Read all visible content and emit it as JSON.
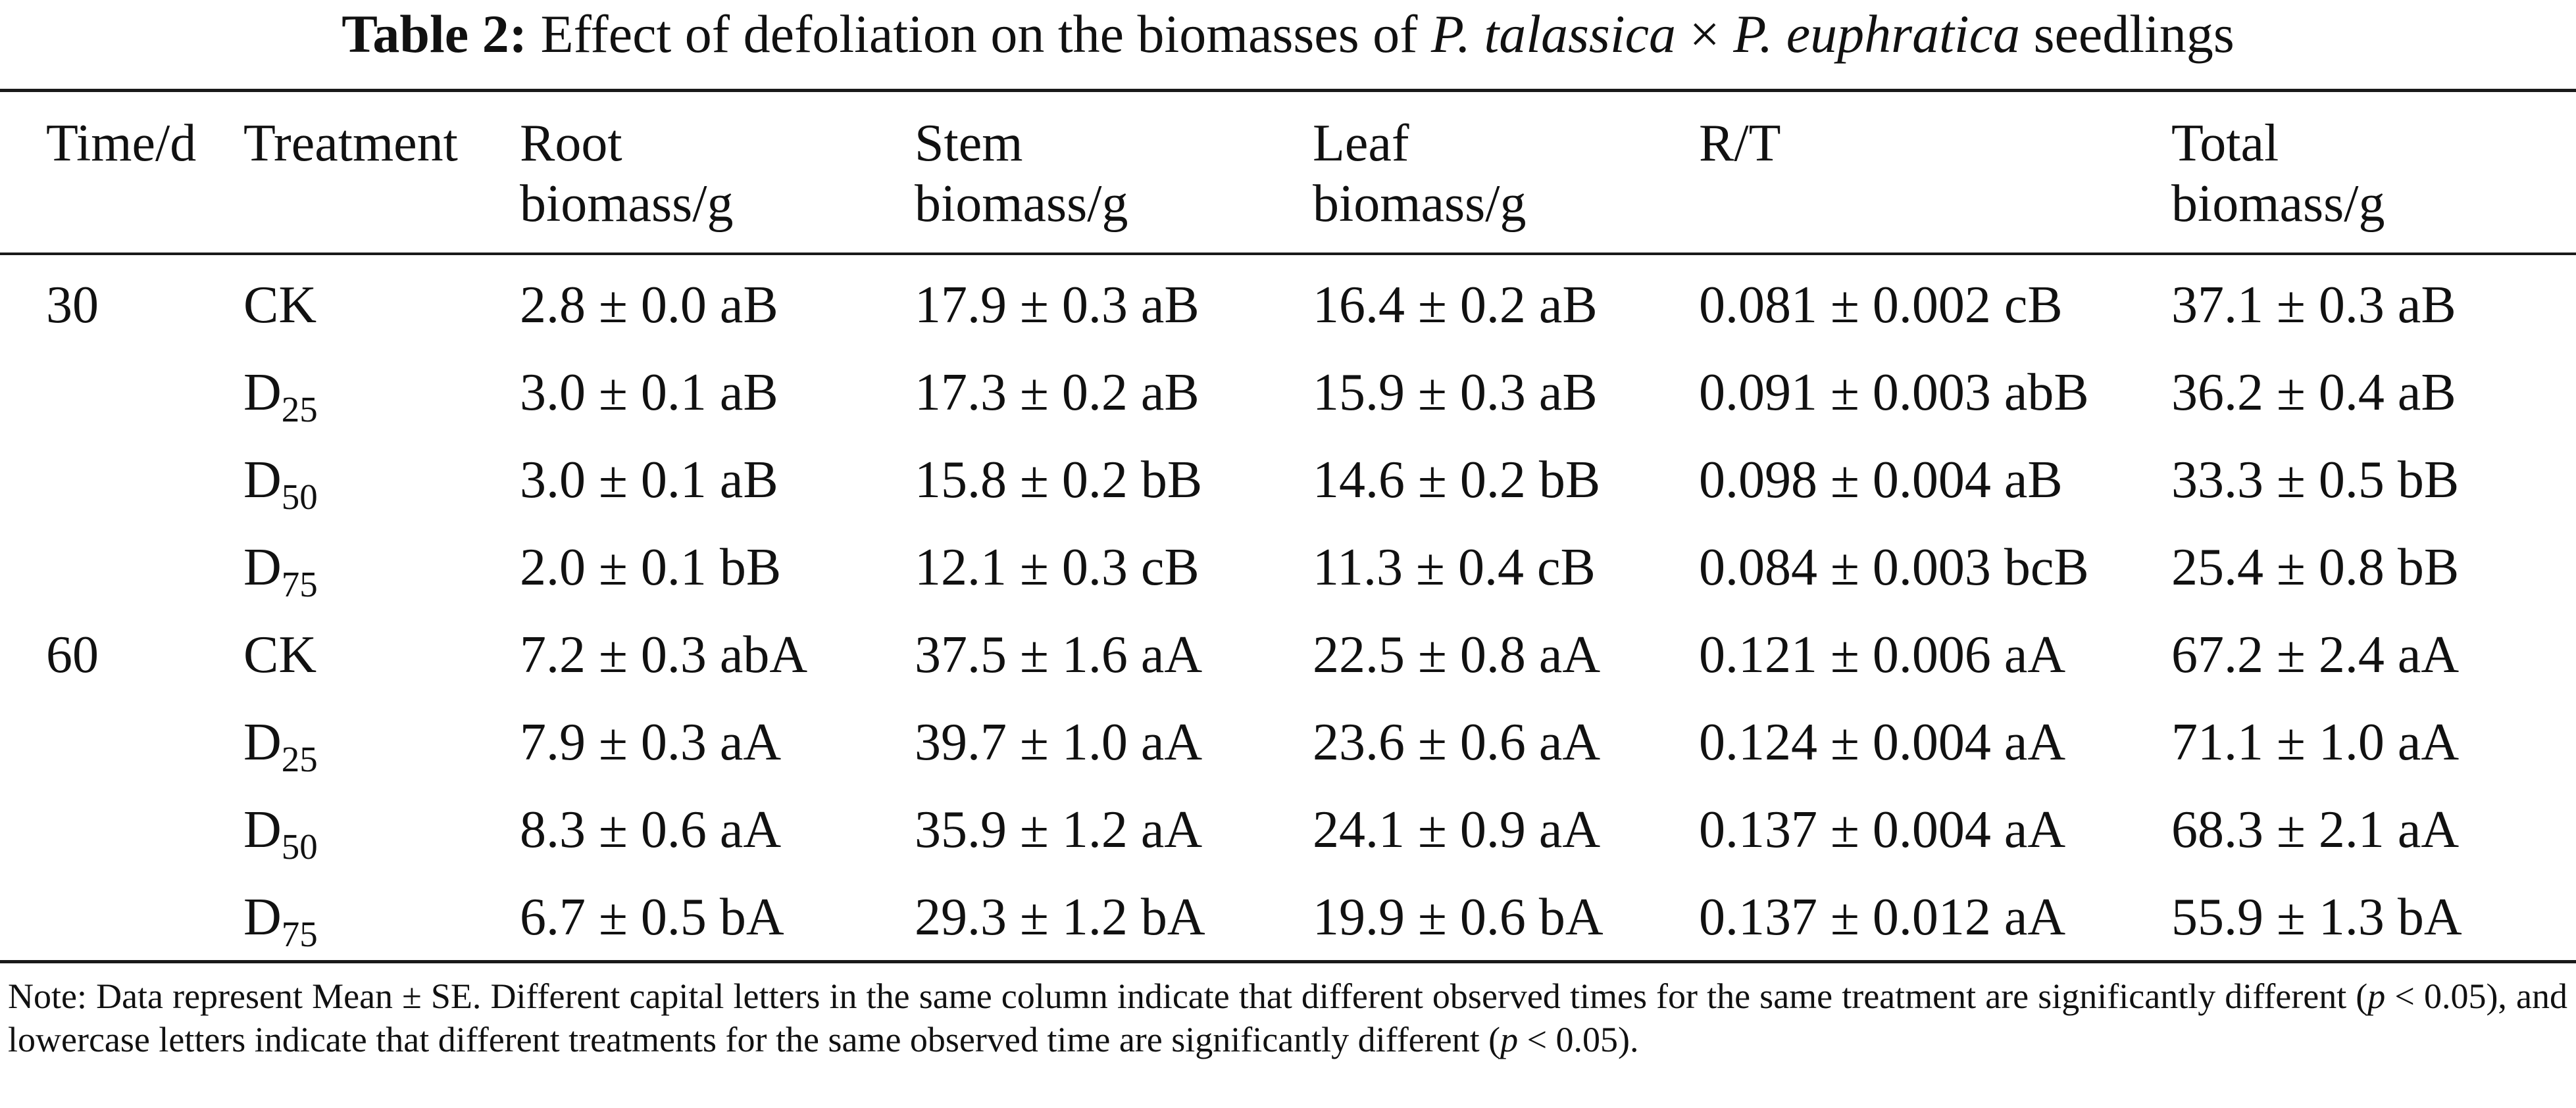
{
  "caption": {
    "label": "Table 2:",
    "text_before": "Effect of defoliation on the biomasses of",
    "species_1": "P. talassica",
    "cross": "×",
    "species_2": "P. euphratica",
    "text_after": "seedlings"
  },
  "headers": {
    "time": "Time/d",
    "treatment": "Treatment",
    "root_line1": "Root",
    "root_line2": "biomass/g",
    "stem_line1": "Stem",
    "stem_line2": "biomass/g",
    "leaf_line1": "Leaf",
    "leaf_line2": "biomass/g",
    "rt": "R/T",
    "total_line1": "Total",
    "total_line2": "biomass/g"
  },
  "rows": [
    {
      "time": "30",
      "trt": "CK",
      "trt_sub": "",
      "root": "2.8 ± 0.0 aB",
      "stem": "17.9 ± 0.3 aB",
      "leaf": "16.4 ± 0.2 aB",
      "rt": "0.081 ± 0.002 cB",
      "total": "37.1 ± 0.3 aB"
    },
    {
      "time": "",
      "trt": "D",
      "trt_sub": "25",
      "root": "3.0 ± 0.1 aB",
      "stem": "17.3 ± 0.2 aB",
      "leaf": "15.9 ± 0.3 aB",
      "rt": "0.091 ± 0.003 abB",
      "total": "36.2 ± 0.4 aB"
    },
    {
      "time": "",
      "trt": "D",
      "trt_sub": "50",
      "root": "3.0 ± 0.1 aB",
      "stem": "15.8 ± 0.2 bB",
      "leaf": "14.6 ± 0.2 bB",
      "rt": "0.098 ± 0.004 aB",
      "total": "33.3 ± 0.5 bB"
    },
    {
      "time": "",
      "trt": "D",
      "trt_sub": "75",
      "root": "2.0 ± 0.1 bB",
      "stem": "12.1 ± 0.3 cB",
      "leaf": "11.3 ± 0.4 cB",
      "rt": "0.084 ± 0.003 bcB",
      "total": "25.4 ± 0.8 bB"
    },
    {
      "time": "60",
      "trt": "CK",
      "trt_sub": "",
      "root": "7.2 ± 0.3 abA",
      "stem": "37.5 ± 1.6 aA",
      "leaf": "22.5 ± 0.8 aA",
      "rt": "0.121 ± 0.006 aA",
      "total": "67.2 ± 2.4 aA"
    },
    {
      "time": "",
      "trt": "D",
      "trt_sub": "25",
      "root": "7.9 ± 0.3 aA",
      "stem": "39.7 ± 1.0 aA",
      "leaf": "23.6 ± 0.6 aA",
      "rt": "0.124 ± 0.004 aA",
      "total": "71.1 ± 1.0 aA"
    },
    {
      "time": "",
      "trt": "D",
      "trt_sub": "50",
      "root": "8.3 ± 0.6 aA",
      "stem": "35.9 ± 1.2 aA",
      "leaf": "24.1 ± 0.9 aA",
      "rt": "0.137 ± 0.004 aA",
      "total": "68.3 ± 2.1 aA"
    },
    {
      "time": "",
      "trt": "D",
      "trt_sub": "75",
      "root": "6.7 ± 0.5 bA",
      "stem": "29.3 ± 1.2 bA",
      "leaf": "19.9 ± 0.6 bA",
      "rt": "0.137 ± 0.012 aA",
      "total": "55.9 ± 1.3 bA"
    }
  ],
  "note": {
    "part1": "Note: Data represent Mean ± SE. Different capital letters in the same column indicate that different observed times for the same treatment are significantly different (",
    "p1": "p",
    "part2": " < 0.05), and lowercase letters indicate that different treatments for the same observed time are significantly different (",
    "p2": "p",
    "part3": " < 0.05)."
  }
}
